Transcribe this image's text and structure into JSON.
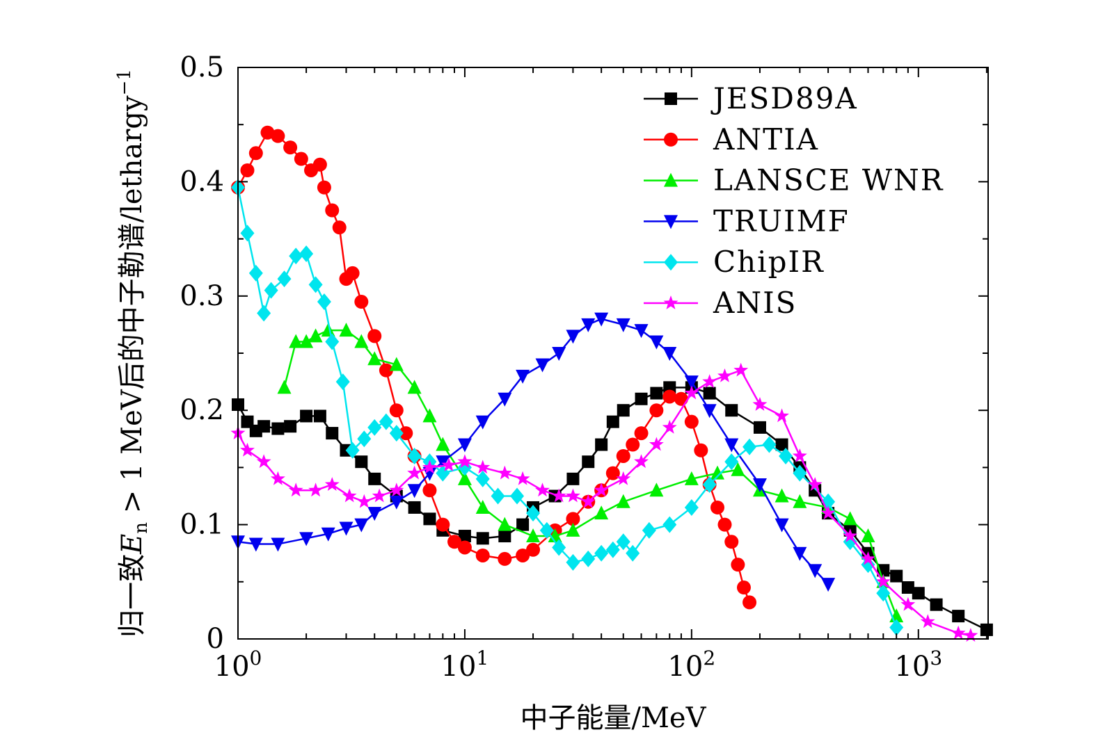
{
  "chart_data": {
    "type": "line",
    "title": "",
    "xlabel": "中子能量/MeV",
    "ylabel": {
      "prefix": "归一致",
      "var": "E",
      "sub": "n",
      "rest": " > 1 MeV后的中子勒谱/lethargy",
      "sup": "−1"
    },
    "xscale": "log",
    "xlim": [
      1,
      2030
    ],
    "ylim": [
      0,
      0.5
    ],
    "xticks": [
      {
        "base": "10",
        "exp": "0",
        "value": 1
      },
      {
        "base": "10",
        "exp": "1",
        "value": 10
      },
      {
        "base": "10",
        "exp": "2",
        "value": 100
      },
      {
        "base": "10",
        "exp": "3",
        "value": 1000
      }
    ],
    "yticks": [
      {
        "label": "0",
        "value": 0
      },
      {
        "label": "0.1",
        "value": 0.1
      },
      {
        "label": "0.2",
        "value": 0.2
      },
      {
        "label": "0.3",
        "value": 0.3
      },
      {
        "label": "0.4",
        "value": 0.4
      },
      {
        "label": "0.5",
        "value": 0.5
      }
    ],
    "grid": false,
    "legend_position": "top-right",
    "series": [
      {
        "name": "JESD89A",
        "color": "#000000",
        "marker": "square",
        "x": [
          1.0,
          1.1,
          1.2,
          1.3,
          1.5,
          1.7,
          2.0,
          2.3,
          2.6,
          3.0,
          3.5,
          4.0,
          5,
          6,
          7,
          8,
          10,
          12,
          15,
          18,
          20,
          25,
          30,
          35,
          40,
          45,
          50,
          60,
          70,
          80,
          100,
          120,
          150,
          200,
          250,
          300,
          350,
          400,
          500,
          600,
          700,
          800,
          900,
          1000,
          1200,
          1500,
          2000
        ],
        "y": [
          0.205,
          0.19,
          0.182,
          0.186,
          0.184,
          0.186,
          0.195,
          0.195,
          0.18,
          0.165,
          0.155,
          0.14,
          0.125,
          0.115,
          0.105,
          0.095,
          0.09,
          0.088,
          0.09,
          0.1,
          0.115,
          0.125,
          0.14,
          0.155,
          0.17,
          0.19,
          0.2,
          0.21,
          0.215,
          0.22,
          0.22,
          0.215,
          0.2,
          0.185,
          0.17,
          0.15,
          0.13,
          0.11,
          0.095,
          0.075,
          0.06,
          0.055,
          0.045,
          0.04,
          0.03,
          0.02,
          0.008
        ]
      },
      {
        "name": "ANTIA",
        "color": "#ff0000",
        "marker": "circle",
        "x": [
          1.0,
          1.1,
          1.2,
          1.35,
          1.5,
          1.7,
          1.9,
          2.1,
          2.3,
          2.4,
          2.6,
          2.8,
          3.0,
          3.2,
          3.5,
          4,
          4.5,
          5,
          5.5,
          6,
          7,
          8,
          9,
          10,
          12,
          15,
          18,
          20,
          25,
          30,
          35,
          40,
          45,
          50,
          55,
          60,
          70,
          80,
          90,
          100,
          110,
          120,
          130,
          140,
          150,
          160,
          170,
          180
        ],
        "y": [
          0.395,
          0.41,
          0.425,
          0.443,
          0.44,
          0.43,
          0.42,
          0.41,
          0.415,
          0.395,
          0.375,
          0.36,
          0.315,
          0.32,
          0.295,
          0.265,
          0.235,
          0.2,
          0.18,
          0.16,
          0.13,
          0.1,
          0.085,
          0.08,
          0.073,
          0.07,
          0.073,
          0.078,
          0.095,
          0.105,
          0.12,
          0.13,
          0.145,
          0.16,
          0.17,
          0.18,
          0.2,
          0.212,
          0.21,
          0.19,
          0.165,
          0.135,
          0.115,
          0.1,
          0.085,
          0.065,
          0.045,
          0.032
        ]
      },
      {
        "name": "LANSCE WNR",
        "color": "#00ee00",
        "marker": "triangle-up",
        "x": [
          1.6,
          1.8,
          2.0,
          2.2,
          2.5,
          3,
          3.5,
          4,
          5,
          6,
          7,
          8,
          10,
          12,
          15,
          20,
          25,
          30,
          40,
          50,
          70,
          100,
          130,
          160,
          200,
          250,
          300,
          400,
          500,
          600,
          700,
          800
        ],
        "y": [
          0.22,
          0.26,
          0.26,
          0.265,
          0.27,
          0.27,
          0.26,
          0.245,
          0.24,
          0.22,
          0.195,
          0.17,
          0.14,
          0.115,
          0.1,
          0.09,
          0.09,
          0.095,
          0.11,
          0.12,
          0.13,
          0.14,
          0.145,
          0.148,
          0.13,
          0.125,
          0.12,
          0.115,
          0.105,
          0.09,
          0.05,
          0.02
        ]
      },
      {
        "name": "TRUIMF",
        "color": "#0000ee",
        "marker": "triangle-down",
        "x": [
          1.0,
          1.2,
          1.5,
          2,
          2.5,
          3,
          3.5,
          4,
          5,
          6,
          7,
          8,
          10,
          12,
          15,
          18,
          22,
          26,
          30,
          35,
          40,
          50,
          60,
          70,
          80,
          100,
          120,
          150,
          200,
          250,
          300,
          350,
          400
        ],
        "y": [
          0.085,
          0.083,
          0.083,
          0.088,
          0.092,
          0.097,
          0.1,
          0.11,
          0.12,
          0.13,
          0.145,
          0.155,
          0.17,
          0.19,
          0.21,
          0.23,
          0.24,
          0.25,
          0.265,
          0.275,
          0.28,
          0.275,
          0.27,
          0.26,
          0.25,
          0.225,
          0.2,
          0.17,
          0.135,
          0.1,
          0.075,
          0.06,
          0.048
        ]
      },
      {
        "name": "ChipIR",
        "color": "#00e5ee",
        "marker": "diamond",
        "x": [
          1.0,
          1.1,
          1.2,
          1.3,
          1.4,
          1.6,
          1.8,
          2.0,
          2.2,
          2.4,
          2.6,
          2.9,
          3.2,
          3.6,
          4,
          4.5,
          5,
          6,
          7,
          8,
          10,
          12,
          14,
          17,
          20,
          23,
          26,
          30,
          35,
          40,
          45,
          50,
          55,
          65,
          80,
          100,
          120,
          150,
          180,
          220,
          260,
          300,
          400,
          500,
          600,
          700,
          800
        ],
        "y": [
          0.395,
          0.355,
          0.32,
          0.285,
          0.305,
          0.315,
          0.335,
          0.337,
          0.31,
          0.295,
          0.26,
          0.225,
          0.165,
          0.175,
          0.185,
          0.19,
          0.18,
          0.16,
          0.155,
          0.145,
          0.15,
          0.14,
          0.125,
          0.125,
          0.11,
          0.095,
          0.08,
          0.067,
          0.07,
          0.075,
          0.078,
          0.085,
          0.075,
          0.095,
          0.1,
          0.115,
          0.135,
          0.155,
          0.168,
          0.17,
          0.16,
          0.145,
          0.12,
          0.085,
          0.065,
          0.04,
          0.01
        ]
      },
      {
        "name": "ANIS",
        "color": "#ff00ff",
        "marker": "star",
        "x": [
          1.0,
          1.1,
          1.3,
          1.5,
          1.8,
          2.2,
          2.6,
          3.1,
          3.6,
          4.2,
          5,
          6,
          7,
          8.5,
          10,
          12,
          15,
          18,
          22,
          26,
          30,
          35,
          40,
          50,
          60,
          70,
          80,
          100,
          120,
          140,
          165,
          200,
          250,
          300,
          350,
          400,
          500,
          600,
          700,
          900,
          1100,
          1500,
          1700
        ],
        "y": [
          0.18,
          0.165,
          0.155,
          0.14,
          0.13,
          0.13,
          0.135,
          0.125,
          0.12,
          0.125,
          0.13,
          0.145,
          0.15,
          0.152,
          0.155,
          0.15,
          0.145,
          0.14,
          0.13,
          0.125,
          0.125,
          0.12,
          0.13,
          0.14,
          0.155,
          0.17,
          0.185,
          0.215,
          0.225,
          0.23,
          0.235,
          0.205,
          0.195,
          0.16,
          0.135,
          0.11,
          0.09,
          0.07,
          0.05,
          0.03,
          0.015,
          0.005,
          0.003
        ]
      }
    ]
  }
}
